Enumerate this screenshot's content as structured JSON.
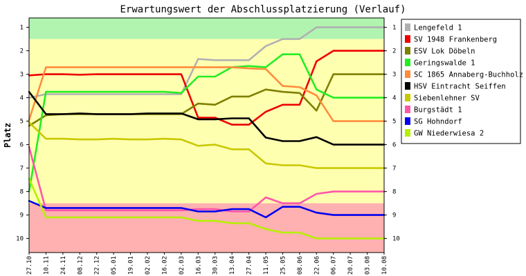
{
  "chart_data": {
    "type": "line",
    "title": "Erwartungswert der Abschlussplatzierung (Verlauf)",
    "ylabel": "Platz",
    "xlabel": "",
    "ylim": [
      0.6,
      10.6
    ],
    "y_inverted": true,
    "y_ticks": [
      1,
      2,
      3,
      4,
      5,
      6,
      7,
      8,
      9,
      10
    ],
    "x": [
      "27.10",
      "10.11",
      "24.11",
      "08.12",
      "22.12",
      "05.01",
      "19.01",
      "02.02",
      "16.02",
      "02.03",
      "16.03",
      "30.03",
      "13.04",
      "27.04",
      "11.05",
      "25.05",
      "08.06",
      "22.06",
      "06.07",
      "20.07",
      "03.08",
      "10.08"
    ],
    "bands": [
      {
        "from": 0.6,
        "to": 1.5,
        "color": "#b0f4b0"
      },
      {
        "from": 1.5,
        "to": 8.5,
        "color": "#ffffb0"
      },
      {
        "from": 8.5,
        "to": 10.6,
        "color": "#ffb0b0"
      }
    ],
    "legend_position": "top-right",
    "series": [
      {
        "name": "Lengefeld 1",
        "color": "#b0b0b0",
        "values": [
          4.0,
          3.85,
          3.85,
          3.85,
          3.85,
          3.85,
          3.85,
          3.85,
          3.85,
          3.85,
          2.35,
          2.4,
          2.4,
          2.4,
          1.8,
          1.5,
          1.5,
          1.0,
          1.0,
          1.0,
          1.0,
          1.0
        ]
      },
      {
        "name": "SV 1948 Frankenberg",
        "color": "#ee0000",
        "values": [
          3.05,
          3.0,
          3.0,
          3.02,
          3.0,
          3.0,
          3.0,
          3.0,
          3.0,
          3.0,
          4.85,
          4.85,
          5.15,
          5.15,
          4.6,
          4.3,
          4.3,
          2.45,
          2.0,
          2.0,
          2.0,
          2.0
        ]
      },
      {
        "name": "ESV Lok Döbeln",
        "color": "#7f7f00",
        "values": [
          5.2,
          4.75,
          4.7,
          4.7,
          4.7,
          4.7,
          4.7,
          4.7,
          4.7,
          4.7,
          4.25,
          4.3,
          3.95,
          3.95,
          3.65,
          3.75,
          3.8,
          4.55,
          3.0,
          3.0,
          3.0,
          3.0
        ]
      },
      {
        "name": "Geringswalde 1",
        "color": "#22ee22",
        "values": [
          8.0,
          3.75,
          3.75,
          3.75,
          3.75,
          3.75,
          3.75,
          3.75,
          3.75,
          3.8,
          3.1,
          3.1,
          2.7,
          2.65,
          2.7,
          2.15,
          2.15,
          3.65,
          4.0,
          4.0,
          4.0,
          4.0
        ]
      },
      {
        "name": "SC 1865 Annaberg-Buchholz",
        "color": "#ff8c3c",
        "values": [
          4.95,
          2.7,
          2.7,
          2.7,
          2.7,
          2.7,
          2.7,
          2.7,
          2.7,
          2.7,
          2.7,
          2.7,
          2.7,
          2.75,
          2.78,
          3.5,
          3.55,
          3.9,
          5.0,
          5.0,
          5.0,
          5.0
        ]
      },
      {
        "name": "HSV Eintracht Seiffen",
        "color": "#000000",
        "values": [
          3.75,
          4.7,
          4.7,
          4.67,
          4.7,
          4.7,
          4.7,
          4.67,
          4.67,
          4.67,
          4.92,
          4.92,
          4.88,
          4.88,
          5.7,
          5.85,
          5.85,
          5.68,
          6.0,
          6.0,
          6.0,
          6.0
        ]
      },
      {
        "name": "Siebenlehner SV",
        "color": "#c8c800",
        "values": [
          5.05,
          5.75,
          5.75,
          5.78,
          5.78,
          5.75,
          5.78,
          5.78,
          5.75,
          5.78,
          6.05,
          6.0,
          6.2,
          6.2,
          6.8,
          6.88,
          6.88,
          7.0,
          7.0,
          7.0,
          7.0,
          7.0
        ]
      },
      {
        "name": "Burgstädt 1",
        "color": "#ff55aa",
        "values": [
          6.1,
          8.8,
          8.8,
          8.8,
          8.8,
          8.8,
          8.8,
          8.8,
          8.8,
          8.8,
          8.75,
          8.75,
          8.85,
          8.85,
          8.25,
          8.5,
          8.5,
          8.1,
          8.0,
          8.0,
          8.0,
          8.0
        ]
      },
      {
        "name": "SG Hohndorf",
        "color": "#0000ee",
        "values": [
          8.4,
          8.7,
          8.7,
          8.7,
          8.7,
          8.7,
          8.7,
          8.7,
          8.7,
          8.7,
          8.85,
          8.85,
          8.75,
          8.75,
          9.1,
          8.65,
          8.65,
          8.9,
          9.0,
          9.0,
          9.0,
          9.0
        ]
      },
      {
        "name": "GW Niederwiesa 2",
        "color": "#b4f000",
        "values": [
          7.45,
          9.1,
          9.1,
          9.1,
          9.1,
          9.1,
          9.1,
          9.1,
          9.1,
          9.1,
          9.25,
          9.25,
          9.35,
          9.35,
          9.6,
          9.75,
          9.75,
          10.0,
          10.0,
          10.0,
          10.0,
          10.0
        ]
      }
    ]
  }
}
